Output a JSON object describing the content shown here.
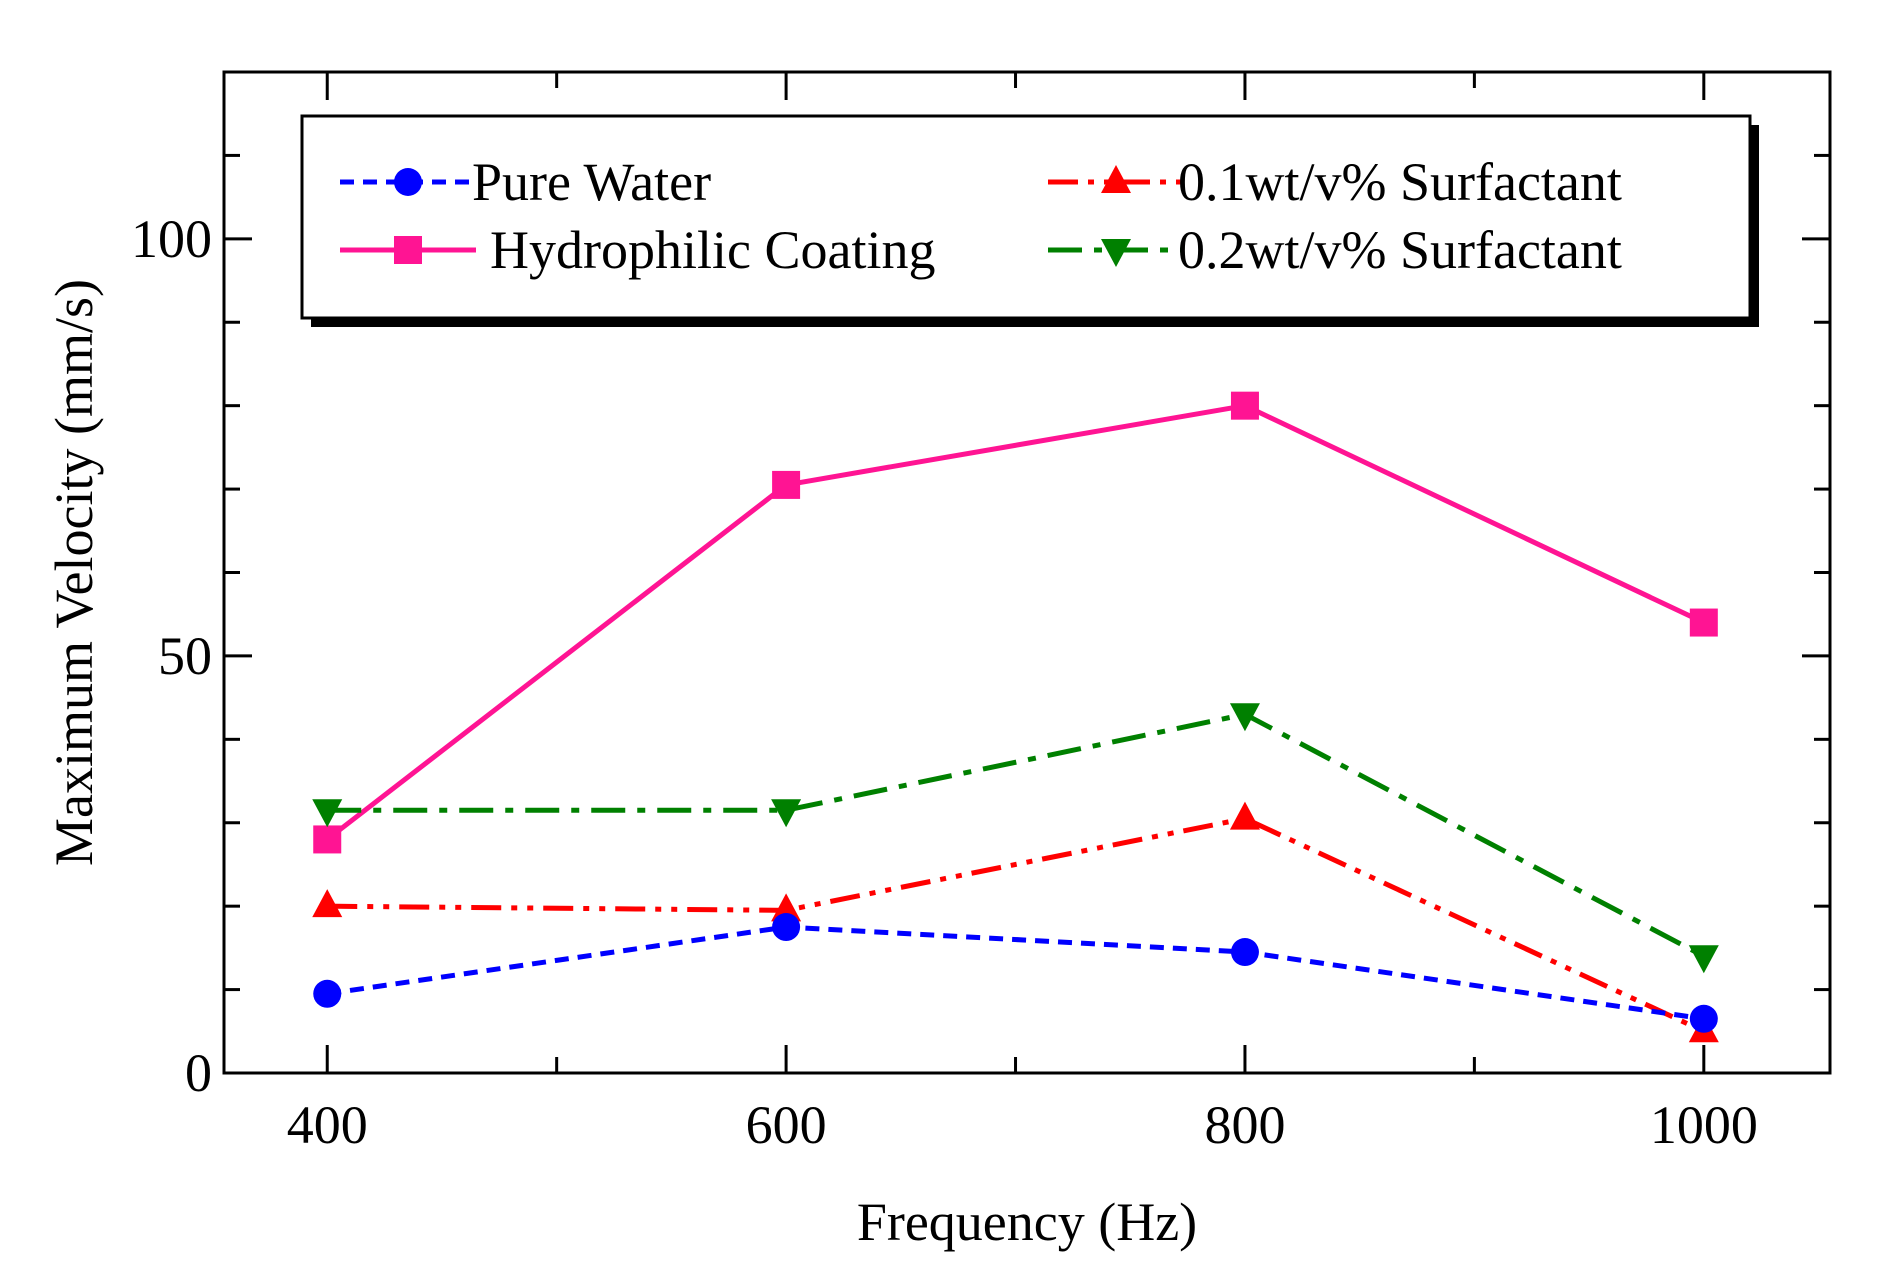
{
  "chart_data": {
    "type": "line",
    "title": "",
    "xlabel": "Frequency (Hz)",
    "ylabel": "Maximum Velocity (mm/s)",
    "xlim": [
      355,
      1055
    ],
    "ylim": [
      0,
      120
    ],
    "x_ticks": [
      400,
      600,
      800,
      1000
    ],
    "x_minor_ticks": [
      500,
      700,
      900
    ],
    "y_ticks": [
      0,
      50,
      100
    ],
    "y_minor_ticks": [
      10,
      20,
      30,
      40,
      60,
      70,
      80,
      90,
      110
    ],
    "legend_position": "top",
    "x": [
      400,
      600,
      800,
      1000
    ],
    "series": [
      {
        "name": "Pure Water",
        "values": [
          9.5,
          17.5,
          14.5,
          6.5
        ],
        "color": "#0000ff",
        "marker": "circle",
        "line_style": "dashed"
      },
      {
        "name": "Hydrophilic Coating",
        "values": [
          28,
          70.5,
          80,
          54
        ],
        "color": "#ff1493",
        "marker": "square",
        "line_style": "solid"
      },
      {
        "name": "0.1wt/v% Surfactant",
        "values": [
          20,
          19.5,
          30.5,
          5
        ],
        "color": "#ff0000",
        "marker": "triangle-up",
        "line_style": "dash-dot-dot"
      },
      {
        "name": "0.2wt/v% Surfactant",
        "values": [
          31.5,
          31.5,
          43,
          14
        ],
        "color": "#008000",
        "marker": "triangle-down",
        "line_style": "dash-dot"
      }
    ]
  }
}
